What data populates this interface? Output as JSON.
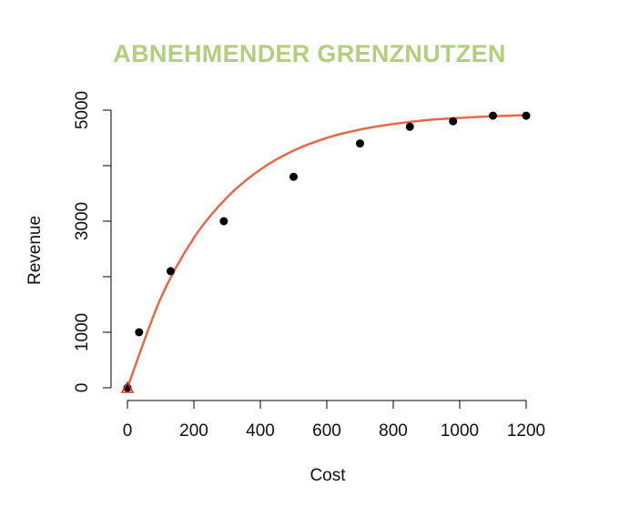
{
  "chart_data": {
    "type": "scatter",
    "title": "ABNEHMENDER GRENZNUTZEN",
    "xlabel": "Cost",
    "ylabel": "Revenue",
    "xlim": [
      0,
      1200
    ],
    "ylim": [
      0,
      5000
    ],
    "x_ticks": [
      0,
      200,
      400,
      600,
      800,
      1000,
      1200
    ],
    "y_ticks": [
      0,
      1000,
      2000,
      3000,
      4000,
      5000
    ],
    "y_tick_labels": [
      "0",
      "1000",
      "",
      "3000",
      "",
      "5000"
    ],
    "grid": false,
    "colors": {
      "title": "#b3cf7c",
      "curve": "#e8694a",
      "points": "#000000",
      "origin_marker": "#d9302a"
    },
    "points": [
      {
        "x": 0,
        "y": 0
      },
      {
        "x": 35,
        "y": 1000
      },
      {
        "x": 130,
        "y": 2100
      },
      {
        "x": 290,
        "y": 3000
      },
      {
        "x": 500,
        "y": 3800
      },
      {
        "x": 700,
        "y": 4400
      },
      {
        "x": 850,
        "y": 4700
      },
      {
        "x": 980,
        "y": 4800
      },
      {
        "x": 1100,
        "y": 4900
      },
      {
        "x": 1200,
        "y": 4900
      }
    ],
    "fit_curve": {
      "model": "saturating exponential",
      "x": [
        0,
        100,
        200,
        300,
        400,
        500,
        600,
        700,
        800,
        900,
        1000,
        1100,
        1200
      ],
      "y": [
        0,
        1610,
        2700,
        3430,
        3930,
        4270,
        4500,
        4650,
        4750,
        4820,
        4860,
        4890,
        4910
      ]
    },
    "origin_marker": {
      "x": 0,
      "y": 0,
      "shape": "triangle"
    }
  }
}
